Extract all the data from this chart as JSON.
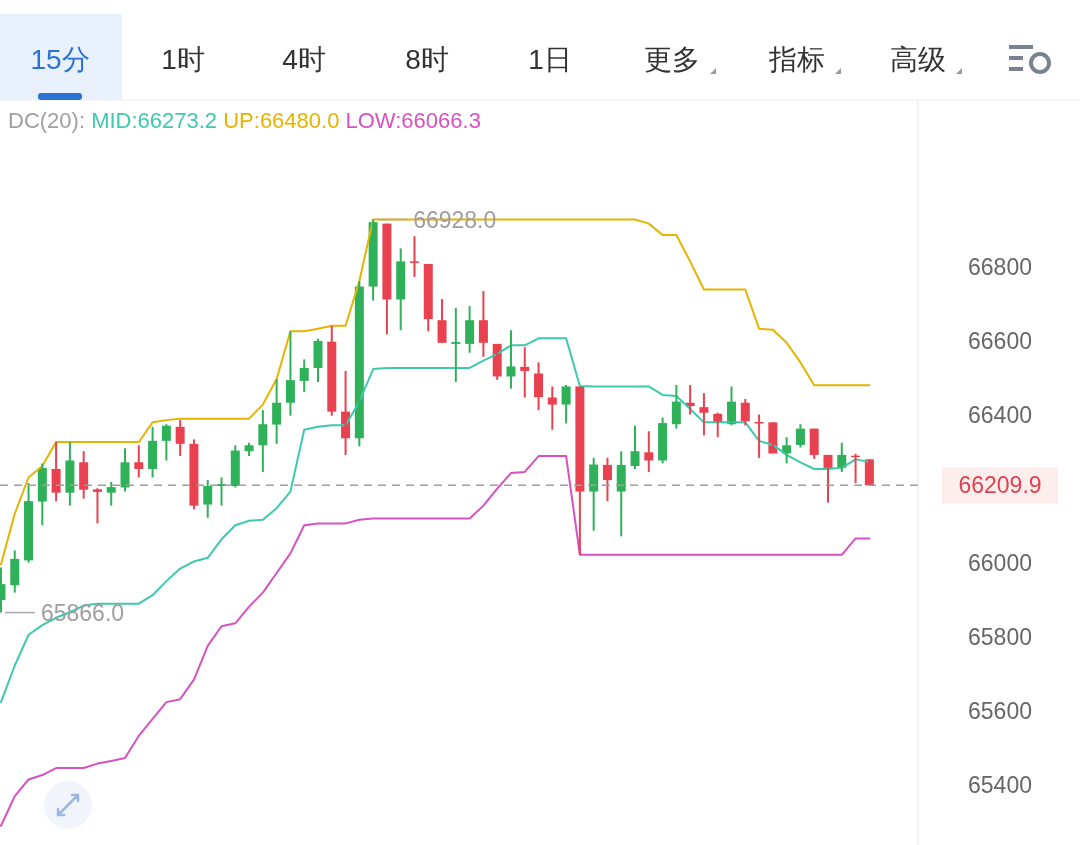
{
  "chart_data": {
    "type": "candlestick",
    "categories": [
      null,
      null,
      null,
      null,
      null,
      null,
      null,
      null,
      null,
      null,
      null,
      null,
      null,
      null,
      null,
      null,
      null,
      null,
      null,
      null,
      null,
      null,
      null,
      null,
      null,
      null,
      null,
      null,
      null,
      null,
      null,
      null,
      null,
      null,
      null,
      null,
      null,
      null,
      null,
      null,
      null,
      null,
      null,
      null,
      null,
      null,
      null,
      null,
      null,
      null,
      null,
      null,
      null,
      null,
      null,
      null,
      null,
      null,
      null,
      null,
      null,
      null,
      null,
      null
    ],
    "ohlc": [
      [
        65900,
        65988,
        65866,
        65943
      ],
      [
        65940,
        66034,
        65920,
        66011
      ],
      [
        66007,
        66216,
        66001,
        66167
      ],
      [
        66166,
        66269,
        66102,
        66257
      ],
      [
        66254,
        66327,
        66167,
        66190
      ],
      [
        66190,
        66327,
        66155,
        66277
      ],
      [
        66272,
        66302,
        66174,
        66198
      ],
      [
        66199,
        66202,
        66107,
        66192
      ],
      [
        66190,
        66219,
        66155,
        66205
      ],
      [
        66204,
        66310,
        66193,
        66272
      ],
      [
        66272,
        66318,
        66231,
        66254
      ],
      [
        66254,
        66368,
        66231,
        66330
      ],
      [
        66330,
        66375,
        66277,
        66371
      ],
      [
        66368,
        66386,
        66289,
        66322
      ],
      [
        66322,
        66334,
        66145,
        66155
      ],
      [
        66158,
        66224,
        66122,
        66208
      ],
      [
        66208,
        66231,
        66155,
        66213
      ],
      [
        66208,
        66318,
        66204,
        66304
      ],
      [
        66302,
        66325,
        66289,
        66318
      ],
      [
        66318,
        66413,
        66246,
        66375
      ],
      [
        66374,
        66497,
        66322,
        66433
      ],
      [
        66433,
        66626,
        66398,
        66494
      ],
      [
        66492,
        66550,
        66462,
        66527
      ],
      [
        66527,
        66606,
        66489,
        66600
      ],
      [
        66598,
        66641,
        66398,
        66409
      ],
      [
        66409,
        66519,
        66292,
        66337
      ],
      [
        66337,
        66762,
        66315,
        66747
      ],
      [
        66747,
        66928,
        66709,
        66921
      ],
      [
        66917,
        66917,
        66618,
        66712
      ],
      [
        66712,
        66850,
        66629,
        66815
      ],
      [
        66815,
        66883,
        66773,
        66811
      ],
      [
        66808,
        66808,
        66626,
        66659
      ],
      [
        66656,
        66713,
        66595,
        66595
      ],
      [
        66592,
        66689,
        66489,
        66597
      ],
      [
        66592,
        66694,
        66568,
        66656
      ],
      [
        66656,
        66735,
        66557,
        66595
      ],
      [
        66592,
        66592,
        66495,
        66504
      ],
      [
        66504,
        66629,
        66471,
        66531
      ],
      [
        66530,
        66583,
        66447,
        66519
      ],
      [
        66512,
        66542,
        66413,
        66448
      ],
      [
        66447,
        66477,
        66360,
        66428
      ],
      [
        66428,
        66481,
        66377,
        66477
      ],
      [
        66477,
        66477,
        66022,
        66193
      ],
      [
        66193,
        66284,
        66087,
        66266
      ],
      [
        66265,
        66284,
        66167,
        66224
      ],
      [
        66193,
        66302,
        66072,
        66265
      ],
      [
        66262,
        66371,
        66254,
        66302
      ],
      [
        66299,
        66356,
        66246,
        66277
      ],
      [
        66277,
        66393,
        66269,
        66378
      ],
      [
        66375,
        66481,
        66363,
        66436
      ],
      [
        66433,
        66481,
        66401,
        66424
      ],
      [
        66421,
        66459,
        66345,
        66406
      ],
      [
        66403,
        66406,
        66340,
        66380
      ],
      [
        66375,
        66477,
        66372,
        66436
      ],
      [
        66433,
        66443,
        66372,
        66383
      ],
      [
        66381,
        66401,
        66284,
        66377
      ],
      [
        66380,
        66380,
        66296,
        66296
      ],
      [
        66296,
        66340,
        66269,
        66318
      ],
      [
        66319,
        66375,
        66312,
        66363
      ],
      [
        66363,
        66363,
        66281,
        66292
      ],
      [
        66292,
        66292,
        66163,
        66257
      ],
      [
        66257,
        66325,
        66246,
        66292
      ],
      [
        66290,
        66295,
        66216,
        66286
      ],
      [
        66280,
        66280,
        66208,
        66210
      ]
    ],
    "colors": [
      "#2fb15a",
      "#2fb15a",
      "#2fb15a",
      "#2fb15a",
      "#e8414f",
      "#2fb15a",
      "#e8414f",
      "#e8414f",
      "#2fb15a",
      "#2fb15a",
      "#e8414f",
      "#2fb15a",
      "#2fb15a",
      "#e8414f",
      "#e8414f",
      "#2fb15a",
      "#2fb15a",
      "#2fb15a",
      "#2fb15a",
      "#2fb15a",
      "#2fb15a",
      "#2fb15a",
      "#2fb15a",
      "#2fb15a",
      "#e8414f",
      "#e8414f",
      "#2fb15a",
      "#2fb15a",
      "#e8414f",
      "#2fb15a",
      "#e8414f",
      "#e8414f",
      "#e8414f",
      "#2fb15a",
      "#2fb15a",
      "#e8414f",
      "#e8414f",
      "#2fb15a",
      "#e8414f",
      "#e8414f",
      "#e8414f",
      "#2fb15a",
      "#e8414f",
      "#2fb15a",
      "#e8414f",
      "#2fb15a",
      "#2fb15a",
      "#e8414f",
      "#2fb15a",
      "#2fb15a",
      "#e8414f",
      "#e8414f",
      "#e8414f",
      "#2fb15a",
      "#e8414f",
      "#e8414f",
      "#e8414f",
      "#2fb15a",
      "#2fb15a",
      "#e8414f",
      "#e8414f",
      "#2fb15a",
      "#e8414f",
      "#e8414f"
    ],
    "series": [
      {
        "name": "MID:66273.2",
        "type": "line",
        "color": "#3ec9ae",
        "values": [
          65624,
          65723,
          65806,
          65832,
          65852,
          65867,
          65885,
          65890,
          65890,
          65890,
          65890,
          65913,
          65951,
          65985,
          66004,
          66014,
          66064,
          66102,
          66114,
          66117,
          66148,
          66193,
          66360,
          66368,
          66372,
          66372,
          66436,
          66524,
          66527,
          66527,
          66527,
          66527,
          66527,
          66527,
          66527,
          66547,
          66565,
          66588,
          66588,
          66607,
          66607,
          66607,
          66478,
          66477,
          66477,
          66477,
          66477,
          66477,
          66454,
          66451,
          66416,
          66380,
          66380,
          66380,
          66380,
          66330,
          66319,
          66292,
          66272,
          66254,
          66254,
          66257,
          66280,
          66273.2
        ]
      },
      {
        "name": "UP:66480.0",
        "type": "line",
        "color": "#e6b300",
        "values": [
          65996,
          66133,
          66231,
          66262,
          66327,
          66327,
          66327,
          66327,
          66327,
          66327,
          66327,
          66380,
          66386,
          66390,
          66390,
          66390,
          66390,
          66390,
          66390,
          66428,
          66497,
          66626,
          66626,
          66633,
          66641,
          66641,
          66762,
          66928,
          66928,
          66928,
          66928,
          66928,
          66928,
          66928,
          66928,
          66928,
          66928,
          66928,
          66928,
          66928,
          66928,
          66928,
          66928,
          66928,
          66928,
          66928,
          66928,
          66917,
          66886,
          66886,
          66815,
          66739,
          66739,
          66739,
          66739,
          66633,
          66630,
          66595,
          66542,
          66480,
          66480,
          66480,
          66480,
          66480
        ]
      },
      {
        "name": "LOW:66066.3",
        "type": "line",
        "color": "#d752c0",
        "values": [
          65290,
          65370,
          65415,
          65427,
          65446,
          65446,
          65446,
          65458,
          65465,
          65473,
          65533,
          65579,
          65624,
          65632,
          65685,
          65776,
          65829,
          65837,
          65882,
          65920,
          65973,
          66026,
          66102,
          66107,
          66107,
          66107,
          66117,
          66120,
          66120,
          66120,
          66120,
          66120,
          66120,
          66120,
          66120,
          66155,
          66201,
          66243,
          66246,
          66289,
          66289,
          66289,
          66022,
          66022,
          66022,
          66022,
          66022,
          66022,
          66022,
          66022,
          66022,
          66022,
          66022,
          66022,
          66022,
          66022,
          66022,
          66022,
          66022,
          66022,
          66022,
          66022,
          66066.3,
          66066.3
        ]
      }
    ],
    "legend_title": "DC(20):",
    "legend": "top",
    "ylim": [
      65238,
      67251
    ],
    "yticks": [
      65400,
      65600,
      65800,
      66000,
      66400,
      66600,
      66800
    ],
    "ref_lines": [
      {
        "axis": "y",
        "value": 66209.9,
        "label": "66209.9",
        "color": "#9e9e9e",
        "line_style": "dashed"
      }
    ],
    "annotations": [
      "15分",
      "1时",
      "4时",
      "8时",
      "1日",
      "更多",
      "指标",
      "高级",
      {
        "text": "66928.0",
        "y": 66928
      },
      {
        "text": "65866.0",
        "y": 65866
      }
    ]
  }
}
